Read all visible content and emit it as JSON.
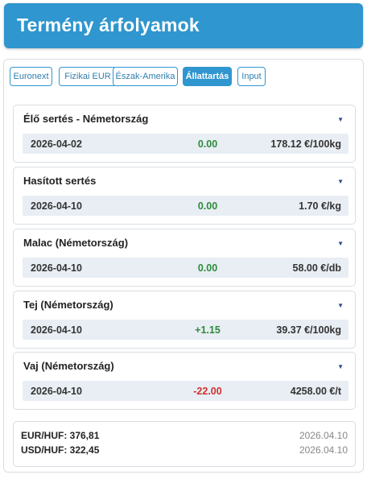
{
  "header": {
    "title": "Termény árfolyamok"
  },
  "tabs": [
    {
      "label": "Euronext",
      "active": false
    },
    {
      "label": "Fizikai EUR",
      "active": false
    },
    {
      "label": "Észak-Amerika",
      "active": false
    },
    {
      "label": "Állattartás",
      "active": true
    },
    {
      "label": "Input",
      "active": false
    }
  ],
  "cards": [
    {
      "title": "Élő sertés - Németország",
      "date": "2026-04-02",
      "change": "0.00",
      "change_status": "positive",
      "price": "178.12 €/100kg"
    },
    {
      "title": "Hasított sertés",
      "date": "2026-04-10",
      "change": "0.00",
      "change_status": "positive",
      "price": "1.70 €/kg"
    },
    {
      "title": "Malac (Németország)",
      "date": "2026-04-10",
      "change": "0.00",
      "change_status": "positive",
      "price": "58.00 €/db"
    },
    {
      "title": "Tej (Németország)",
      "date": "2026-04-10",
      "change": "+1.15",
      "change_status": "positive",
      "price": "39.37 €/100kg"
    },
    {
      "title": "Vaj (Németország)",
      "date": "2026-04-10",
      "change": "-22.00",
      "change_status": "negative",
      "price": "4258.00 €/t"
    }
  ],
  "fx": {
    "eur": {
      "label": "EUR/HUF: 376,81",
      "date": "2026.04.10"
    },
    "usd": {
      "label": "USD/HUF: 322,45",
      "date": "2026.04.10"
    }
  },
  "colors": {
    "accent": "#2f96cf",
    "positive": "#2d8a3a",
    "negative": "#d0312d",
    "row_bg": "#e8eef4"
  },
  "icons": {
    "card_toggle": "caret-down-icon"
  }
}
